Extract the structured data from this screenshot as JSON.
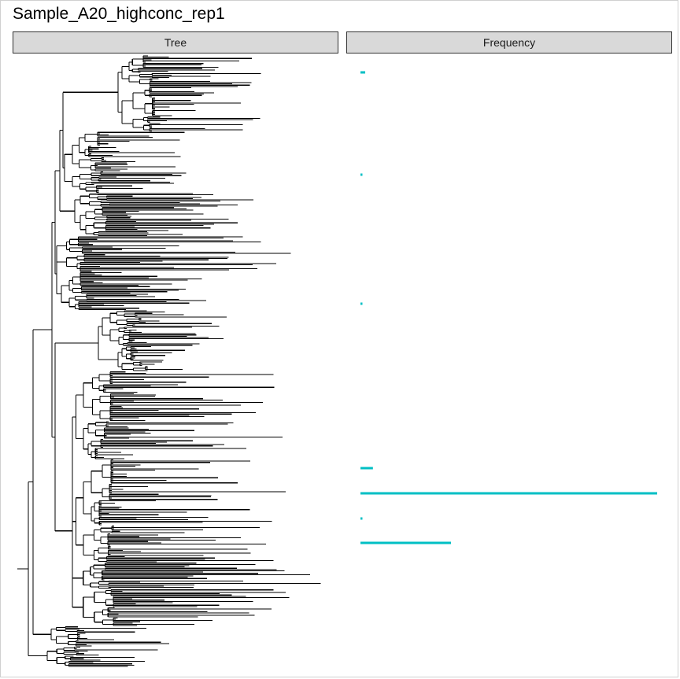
{
  "title": "Sample_A20_highconc_rep1",
  "facets": [
    "Tree",
    "Frequency"
  ],
  "colors": {
    "tree_line": "#000000",
    "frequency_bar": "#00bfc4",
    "strip_fill": "#d9d9d9",
    "strip_border": "#333333"
  },
  "chart_data": {
    "type": "bar",
    "orientation": "horizontal",
    "title": "Sample_A20_highconc_rep1",
    "panels": [
      "Tree",
      "Frequency"
    ],
    "grid": false,
    "legend": "none",
    "tree": {
      "type": "phylogenetic-tree",
      "layout": "rectangular",
      "tip_order": "top-to-bottom"
    },
    "frequency": {
      "tip_range": [
        0,
        780
      ],
      "xlim": [
        0,
        1
      ],
      "bars": [
        {
          "tip_position": 24,
          "value": 0.016
        },
        {
          "tip_position": 154,
          "value": 0.006
        },
        {
          "tip_position": 318,
          "value": 0.005
        },
        {
          "tip_position": 527,
          "value": 0.042
        },
        {
          "tip_position": 559,
          "value": 1.0
        },
        {
          "tip_position": 591,
          "value": 0.006
        },
        {
          "tip_position": 622,
          "value": 0.305
        }
      ]
    }
  }
}
